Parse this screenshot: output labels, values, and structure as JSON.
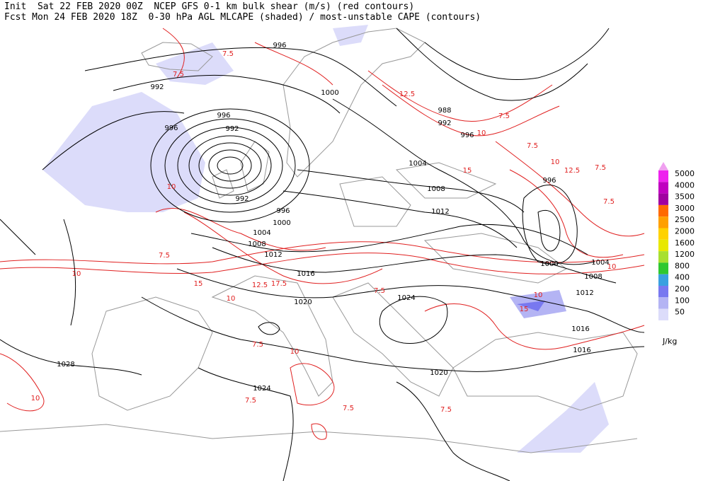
{
  "header": {
    "line1": "Init  Sat 22 FEB 2020 00Z  NCEP GFS 0-1 km bulk shear (m/s) (red contours)",
    "line2": "Fcst Mon 24 FEB 2020 18Z  0-30 hPa AGL MLCAPE (shaded) / most-unstable CAPE (contours)"
  },
  "isobar_labels": [
    "996",
    "992",
    "996",
    "996",
    "992",
    "1000",
    "988",
    "992",
    "996",
    "1004",
    "1008",
    "1012",
    "996",
    "992",
    "996",
    "1000",
    "1004",
    "1008",
    "1012",
    "1016",
    "1020",
    "1024",
    "1000",
    "1004",
    "1008",
    "1012",
    "1016",
    "1016",
    "1020",
    "1024",
    "1028"
  ],
  "shear_labels": [
    "7.5",
    "7.5",
    "12.5",
    "7.5",
    "10",
    "7.5",
    "10",
    "12.5",
    "7.5",
    "15",
    "10",
    "7.5",
    "10",
    "15",
    "12.5",
    "17.5",
    "10",
    "7.5",
    "10",
    "7.5",
    "7.5",
    "7.5",
    "10",
    "7.5",
    "10",
    "15",
    "10",
    "7.5"
  ],
  "legend": {
    "levels": [
      {
        "label": "5000",
        "color": "#ee22ee"
      },
      {
        "label": "4000",
        "color": "#c000c0"
      },
      {
        "label": "3500",
        "color": "#a000a0"
      },
      {
        "label": "3000",
        "color": "#ff6a00"
      },
      {
        "label": "2500",
        "color": "#ffa000"
      },
      {
        "label": "2000",
        "color": "#ffd200"
      },
      {
        "label": "1600",
        "color": "#e8e800"
      },
      {
        "label": "1200",
        "color": "#a8e030"
      },
      {
        "label": "800",
        "color": "#30c830"
      },
      {
        "label": "400",
        "color": "#3aa0e0"
      },
      {
        "label": "200",
        "color": "#7878f0"
      },
      {
        "label": "100",
        "color": "#b4b4f4"
      },
      {
        "label": "50",
        "color": "#dcdcfa"
      }
    ],
    "unit": "J/kg"
  }
}
